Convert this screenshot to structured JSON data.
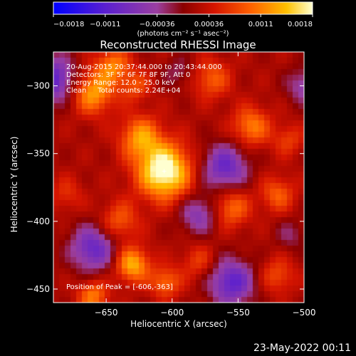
{
  "chart_data": {
    "type": "heatmap",
    "title": "Reconstructed RHESSI Image",
    "xlabel": "Heliocentric X (arcsec)",
    "ylabel": "Heliocentric Y (arcsec)",
    "xlim": [
      -690,
      -500
    ],
    "ylim": [
      -460,
      -275
    ],
    "x_ticks": [
      -650,
      -600,
      -550,
      -500
    ],
    "y_ticks": [
      -300,
      -350,
      -400,
      -450
    ],
    "colorbar": {
      "range": [
        -0.0018,
        0.0018
      ],
      "tick_labels": [
        "-0.0018",
        "-0.0011",
        "-0.00036",
        "0.00036",
        "0.0011",
        "0.0018"
      ],
      "unit_label": "(photons cm⁻² s⁻¹ asec⁻²)"
    },
    "annotations": [
      "20-Aug-2015 20:37:44.000 to 20:43:44.000",
      "Detectors: 3F 5F 6F 7F 8F 9F, Att 0",
      "Energy Range: 12.0 - 25.0 keV",
      "Clean     Total counts: 2.24E+04"
    ],
    "peak_label": "Position of Peak = [-606,-363]",
    "peak_position": [
      -606,
      -363
    ],
    "blobs": [
      {
        "x": -606,
        "y": -363,
        "value": 0.0018,
        "sigma": 14
      },
      {
        "x": -624,
        "y": -338,
        "value": 0.001,
        "sigma": 11
      },
      {
        "x": -660,
        "y": -305,
        "value": 0.0011,
        "sigma": 11
      },
      {
        "x": -645,
        "y": -285,
        "value": 0.0009,
        "sigma": 9
      },
      {
        "x": -628,
        "y": -300,
        "value": 0.0006,
        "sigma": 8
      },
      {
        "x": -570,
        "y": -295,
        "value": 0.0007,
        "sigma": 10
      },
      {
        "x": -540,
        "y": -330,
        "value": 0.0009,
        "sigma": 10
      },
      {
        "x": -555,
        "y": -390,
        "value": 0.0008,
        "sigma": 10
      },
      {
        "x": -520,
        "y": -380,
        "value": 0.0007,
        "sigma": 9
      },
      {
        "x": -512,
        "y": -340,
        "value": 0.0005,
        "sigma": 8
      },
      {
        "x": -640,
        "y": -400,
        "value": 0.0007,
        "sigma": 10
      },
      {
        "x": -630,
        "y": -432,
        "value": 0.0012,
        "sigma": 9
      },
      {
        "x": -605,
        "y": -445,
        "value": 0.0008,
        "sigma": 8
      },
      {
        "x": -660,
        "y": -455,
        "value": 0.0009,
        "sigma": 8
      },
      {
        "x": -580,
        "y": -430,
        "value": 0.0005,
        "sigma": 9
      },
      {
        "x": -520,
        "y": -440,
        "value": 0.0006,
        "sigma": 9
      },
      {
        "x": -680,
        "y": -380,
        "value": 0.0004,
        "sigma": 9
      },
      {
        "x": -690,
        "y": -295,
        "value": -0.0012,
        "sigma": 12
      },
      {
        "x": -560,
        "y": -360,
        "value": -0.0011,
        "sigma": 12
      },
      {
        "x": -580,
        "y": -395,
        "value": -0.0008,
        "sigma": 10
      },
      {
        "x": -660,
        "y": -420,
        "value": -0.0011,
        "sigma": 12
      },
      {
        "x": -555,
        "y": -445,
        "value": -0.0012,
        "sigma": 12
      },
      {
        "x": -595,
        "y": -290,
        "value": -0.0004,
        "sigma": 8
      },
      {
        "x": -500,
        "y": -300,
        "value": -0.0007,
        "sigma": 9
      },
      {
        "x": -510,
        "y": -410,
        "value": -0.0004,
        "sigma": 8
      }
    ]
  },
  "footer": {
    "timestamp": "23-May-2022 00:11"
  }
}
